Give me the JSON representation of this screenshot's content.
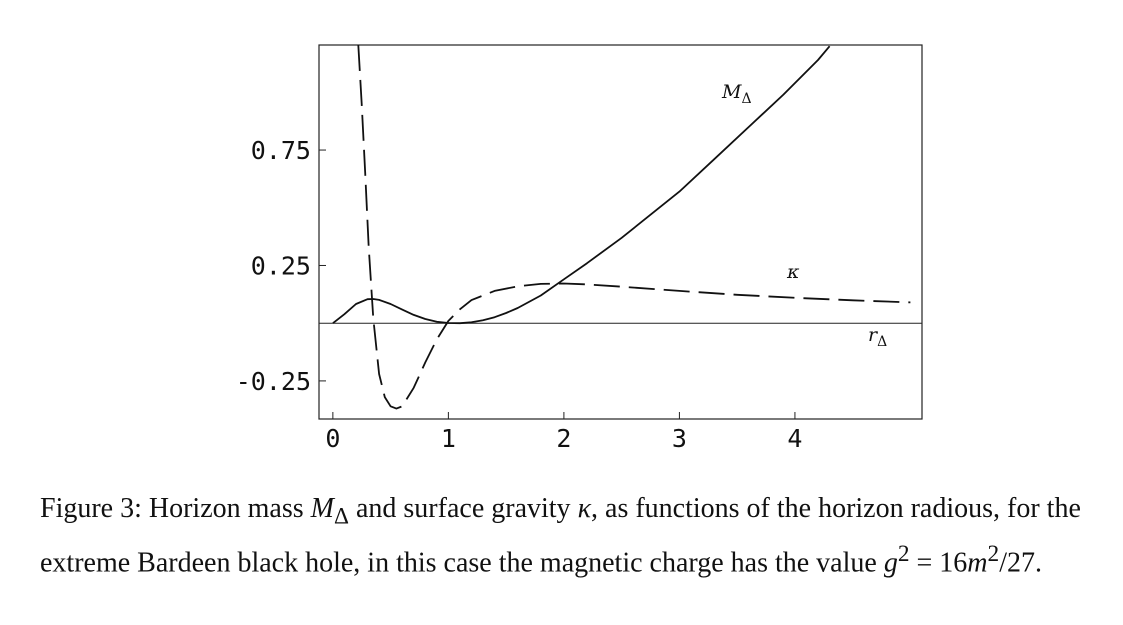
{
  "chart_data": {
    "type": "line",
    "xlim": [
      -0.12,
      5.1
    ],
    "ylim": [
      -0.415,
      1.205
    ],
    "x_ticks": [
      0,
      1,
      2,
      3,
      4
    ],
    "x_tick_labels": [
      "0",
      "1",
      "2",
      "3",
      "4"
    ],
    "y_ticks": [
      0.75,
      0.25,
      -0.25
    ],
    "y_tick_labels": [
      "0.75",
      "0.25",
      "-0.25"
    ],
    "grid": false,
    "series": [
      {
        "name": "M_Δ",
        "style": "solid",
        "x": [
          0,
          0.1,
          0.2,
          0.3,
          0.35,
          0.4,
          0.5,
          0.6,
          0.7,
          0.8,
          0.9,
          1.0,
          1.1,
          1.2,
          1.3,
          1.4,
          1.5,
          1.6,
          1.8,
          2.0,
          2.2,
          2.5,
          2.8,
          3.0,
          3.3,
          3.6,
          3.9,
          4.2,
          4.3
        ],
        "y": [
          0,
          0.039,
          0.083,
          0.104,
          0.105,
          0.101,
          0.083,
          0.059,
          0.036,
          0.018,
          0.006,
          0.001,
          0.0,
          0.004,
          0.013,
          0.026,
          0.044,
          0.066,
          0.12,
          0.19,
          0.26,
          0.37,
          0.49,
          0.57,
          0.71,
          0.85,
          0.99,
          1.14,
          1.2
        ]
      },
      {
        "name": "κ",
        "style": "dashed",
        "x": [
          0.22,
          0.25,
          0.28,
          0.31,
          0.35,
          0.4,
          0.45,
          0.5,
          0.55,
          0.6,
          0.7,
          0.8,
          0.9,
          1.0,
          1.1,
          1.2,
          1.4,
          1.6,
          1.8,
          2.0,
          2.2,
          2.5,
          3.0,
          3.5,
          4.0,
          4.5,
          5.0
        ],
        "y": [
          1.205,
          0.95,
          0.65,
          0.33,
          0.02,
          -0.22,
          -0.32,
          -0.36,
          -0.37,
          -0.36,
          -0.28,
          -0.17,
          -0.07,
          0.01,
          0.06,
          0.1,
          0.14,
          0.16,
          0.17,
          0.172,
          0.168,
          0.158,
          0.14,
          0.123,
          0.11,
          0.099,
          0.09
        ]
      }
    ],
    "annotations": {
      "m_label": "M",
      "m_sub": "Δ",
      "kappa_label": "κ",
      "r_label": "r",
      "r_sub": "Δ"
    }
  },
  "caption": {
    "prefix": "Figure 3:  Horizon mass ",
    "m_symbol": "M",
    "m_sub": "Δ",
    "middle": " and surface gravity ",
    "kappa": "κ",
    "suffix": ", as functions of the horizon radious, for the extreme Bardeen black hole, in this case the magnetic charge has the value ",
    "eq_g": "g",
    "eq_sup1": "2",
    "eq_equals": " = 16",
    "eq_m": "m",
    "eq_sup2": "2",
    "eq_tail": "/27."
  }
}
